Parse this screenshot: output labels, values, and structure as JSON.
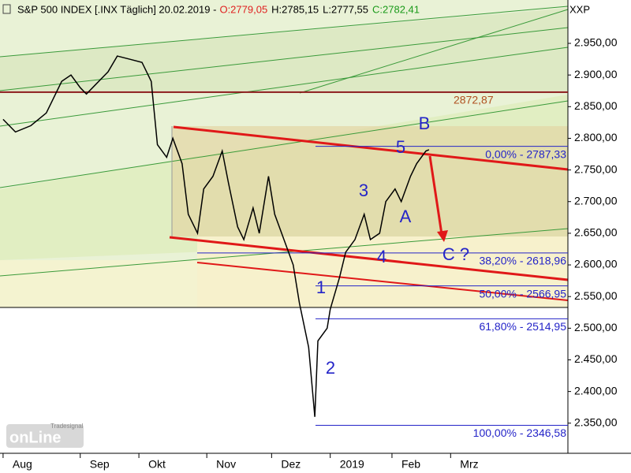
{
  "chart_data": {
    "type": "line",
    "title": "S&P 500 INDEX [.INX  Täglich] 20.02.2019 -",
    "ohlc": [
      {
        "label": "O:2779,05",
        "color": "#e02020"
      },
      {
        "label": "H:2785,15",
        "color": "#000000"
      },
      {
        "label": "L:2777,55",
        "color": "#000000"
      },
      {
        "label": "C:2782,41",
        "color": "#1a9a1a"
      }
    ],
    "instrument_code": "XXP",
    "x": [
      1,
      5,
      10,
      15,
      20,
      23,
      26,
      28,
      31,
      35,
      38,
      42,
      46,
      49,
      51,
      54,
      56,
      59,
      61,
      64,
      66,
      69,
      72,
      74,
      77,
      79,
      82,
      84,
      87,
      89,
      92,
      95,
      97,
      100,
      102,
      103,
      106,
      107,
      110,
      112,
      115,
      118,
      120,
      123,
      125,
      128,
      130,
      133,
      135,
      138,
      139
    ],
    "series": [
      {
        "color": "#000000",
        "values": [
          2830,
          2810,
          2820,
          2840,
          2890,
          2900,
          2880,
          2870,
          2885,
          2905,
          2930,
          2925,
          2920,
          2890,
          2790,
          2770,
          2800,
          2760,
          2680,
          2650,
          2720,
          2740,
          2780,
          2730,
          2660,
          2640,
          2690,
          2650,
          2740,
          2680,
          2640,
          2600,
          2540,
          2470,
          2360,
          2480,
          2500,
          2530,
          2580,
          2620,
          2640,
          2680,
          2640,
          2650,
          2700,
          2720,
          2700,
          2740,
          2760,
          2780,
          2782
        ]
      }
    ],
    "xlim": [
      0,
      184
    ],
    "ylim": [
      2302.4,
      3018.5
    ],
    "xticks": [
      {
        "value": 1,
        "label": "Aug"
      },
      {
        "value": 26,
        "label": "Sep"
      },
      {
        "value": 45,
        "label": "Okt"
      },
      {
        "value": 67,
        "label": "Nov"
      },
      {
        "value": 88,
        "label": "Dez"
      },
      {
        "value": 107,
        "label": "2019"
      },
      {
        "value": 127,
        "label": "Feb"
      },
      {
        "value": 146,
        "label": "Mrz"
      }
    ],
    "yticks": [
      {
        "value": 2350,
        "label": "2.350,00"
      },
      {
        "value": 2400,
        "label": "2.400,00"
      },
      {
        "value": 2450,
        "label": "2.450,00"
      },
      {
        "value": 2500,
        "label": "2.500,00"
      },
      {
        "value": 2550,
        "label": "2.550,00"
      },
      {
        "value": 2600,
        "label": "2.600,00"
      },
      {
        "value": 2650,
        "label": "2.650,00"
      },
      {
        "value": 2700,
        "label": "2.700,00"
      },
      {
        "value": 2750,
        "label": "2.750,00"
      },
      {
        "value": 2800,
        "label": "2.800,00"
      },
      {
        "value": 2850,
        "label": "2.850,00"
      },
      {
        "value": 2900,
        "label": "2.900,00"
      },
      {
        "value": 2950,
        "label": "2.950,00"
      }
    ],
    "levels": [
      {
        "value": 2872.87,
        "label": "2872,87",
        "color": "#8b1a1a"
      }
    ],
    "fib_levels": [
      {
        "value": 2787.33,
        "label": "0,00% - 2787,33"
      },
      {
        "value": 2618.96,
        "label": "38,20% - 2618,96"
      },
      {
        "value": 2566.95,
        "label": "50,00% - 2566,95"
      },
      {
        "value": 2514.95,
        "label": "61,80% - 2514,95"
      },
      {
        "value": 2346.58,
        "label": "100,00% - 2346,58"
      }
    ],
    "wave_labels": [
      "1",
      "2",
      "3",
      "4",
      "5",
      "A",
      "B",
      "C ?"
    ],
    "logo": [
      "Tradesignal",
      "onLine"
    ]
  }
}
